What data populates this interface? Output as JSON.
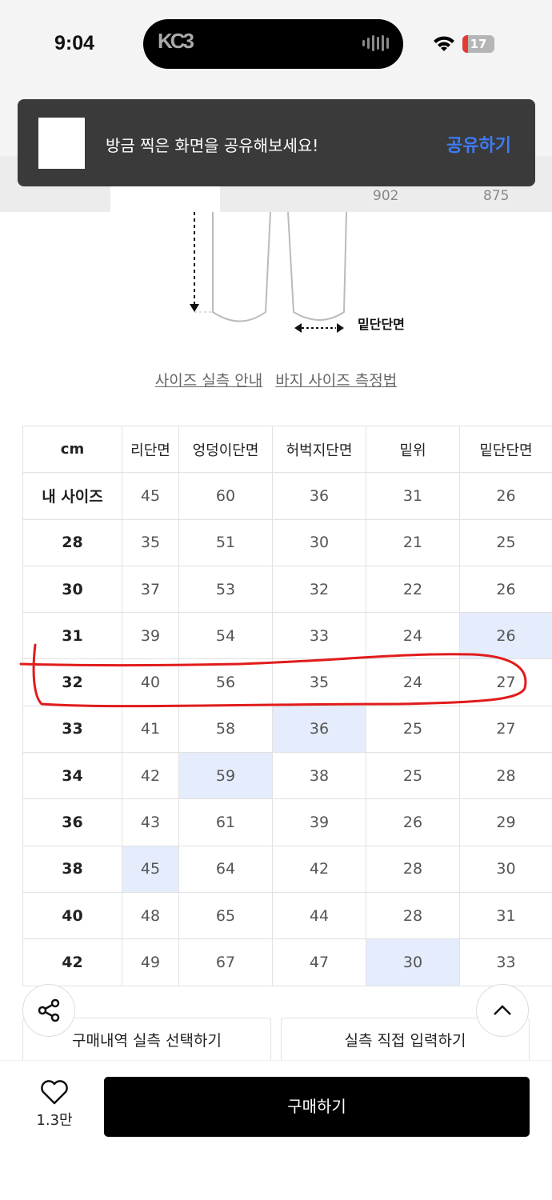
{
  "status_bar": {
    "time": "9:04",
    "island_logo": "KC3",
    "battery": "17"
  },
  "tabs": {
    "numbers": [
      "902",
      "875"
    ]
  },
  "toast": {
    "message": "방금 찍은 화면을 공유해보세요!",
    "action": "공유하기"
  },
  "diagram": {
    "label": "밑단단면"
  },
  "links": [
    "사이즈 실측 안내",
    "바지 사이즈 측정법"
  ],
  "size_table": {
    "headers": [
      "cm",
      "리단면",
      "엉덩이단면",
      "허벅지단면",
      "밑위",
      "밑단단면"
    ],
    "rows": [
      {
        "size": "내 사이즈",
        "values": [
          "45",
          "60",
          "36",
          "31",
          "26"
        ]
      },
      {
        "size": "28",
        "values": [
          "35",
          "51",
          "30",
          "21",
          "25"
        ]
      },
      {
        "size": "30",
        "values": [
          "37",
          "53",
          "32",
          "22",
          "26"
        ]
      },
      {
        "size": "31",
        "values": [
          "39",
          "54",
          "33",
          "24",
          "26"
        ],
        "highlight": 4
      },
      {
        "size": "32",
        "values": [
          "40",
          "56",
          "35",
          "24",
          "27"
        ],
        "annotated": true
      },
      {
        "size": "33",
        "values": [
          "41",
          "58",
          "36",
          "25",
          "27"
        ],
        "highlight": 2
      },
      {
        "size": "34",
        "values": [
          "42",
          "59",
          "38",
          "25",
          "28"
        ],
        "highlight": 1
      },
      {
        "size": "36",
        "values": [
          "43",
          "61",
          "39",
          "26",
          "29"
        ]
      },
      {
        "size": "38",
        "values": [
          "45",
          "64",
          "42",
          "28",
          "30"
        ],
        "highlight": 0
      },
      {
        "size": "40",
        "values": [
          "48",
          "65",
          "44",
          "28",
          "31"
        ]
      },
      {
        "size": "42",
        "values": [
          "49",
          "67",
          "47",
          "30",
          "33"
        ],
        "highlight": 3
      }
    ],
    "highlight_color": "#e5ecfb",
    "annotation_color": "#e11b1b"
  },
  "options": {
    "purchase_history": "구매내역 실측 선택하기",
    "direct_input": "실측 직접 입력하기"
  },
  "bottom": {
    "like_count": "1.3만",
    "buy_label": "구매하기"
  }
}
